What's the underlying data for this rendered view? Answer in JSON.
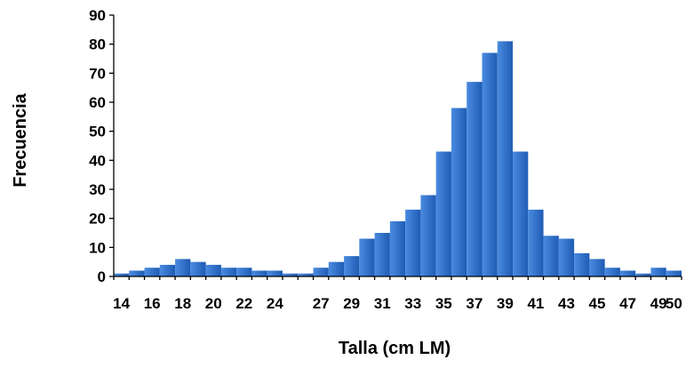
{
  "chart_data": {
    "type": "bar",
    "title": "",
    "xlabel": "Talla (cm LM)",
    "ylabel": "Frecuencia",
    "ylim": [
      0,
      90
    ],
    "yticks": [
      "0",
      "10",
      "20",
      "30",
      "40",
      "50",
      "60",
      "70",
      "80",
      "90"
    ],
    "grid": false,
    "legend": "none",
    "bar_gradient_light": "#4a8be0",
    "bar_gradient_dark": "#1f5bb4",
    "categories": [
      "14",
      "15",
      "16",
      "17",
      "18",
      "19",
      "20",
      "21",
      "22",
      "23",
      "24",
      "25",
      "26",
      "27",
      "28",
      "29",
      "30",
      "31",
      "32",
      "33",
      "34",
      "35",
      "36",
      "37",
      "38",
      "39",
      "40",
      "41",
      "42",
      "43",
      "44",
      "45",
      "46",
      "47",
      "48",
      "49",
      "50"
    ],
    "x_tick_labels": [
      "14",
      "16",
      "18",
      "20",
      "22",
      "24",
      "27",
      "29",
      "31",
      "33",
      "35",
      "37",
      "39",
      "41",
      "43",
      "45",
      "47",
      "49",
      "50"
    ],
    "values": [
      1,
      2,
      3,
      4,
      6,
      5,
      4,
      3,
      3,
      2,
      2,
      1,
      1,
      3,
      5,
      7,
      13,
      15,
      19,
      23,
      28,
      43,
      58,
      67,
      77,
      81,
      43,
      23,
      14,
      13,
      8,
      6,
      3,
      2,
      1,
      3,
      2
    ]
  }
}
